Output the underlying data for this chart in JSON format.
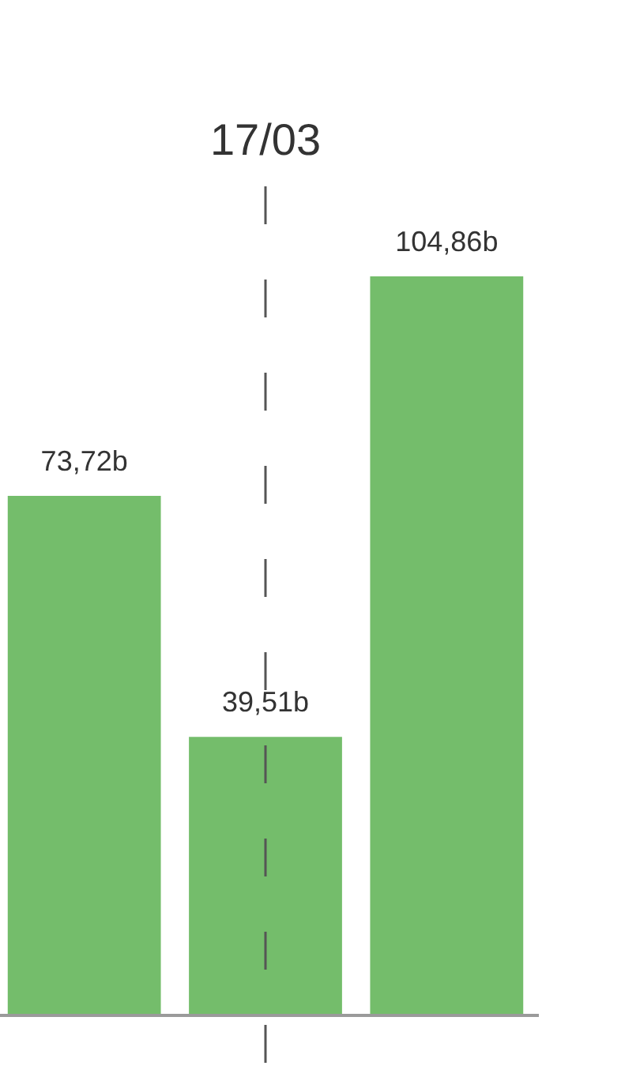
{
  "chart_data": {
    "type": "bar",
    "categories": [
      null,
      null,
      null
    ],
    "values": [
      73.72,
      39.51,
      104.86
    ],
    "color": "#74bd6b",
    "value_labels": [
      "73,72b",
      "39,51b",
      "104,86b"
    ],
    "annotations": [
      "17/03"
    ]
  }
}
